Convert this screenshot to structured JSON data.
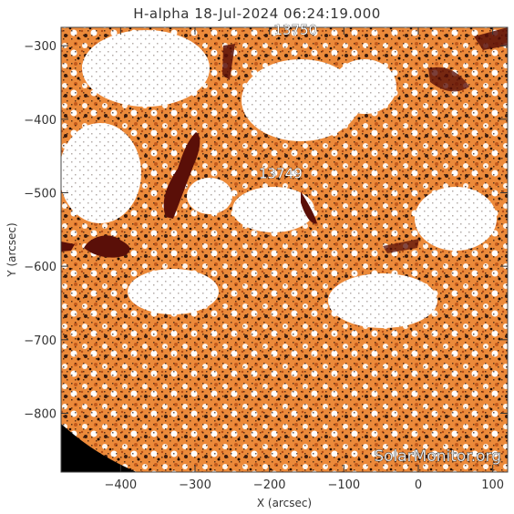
{
  "title": "H-alpha 18-Jul-2024 06:24:19.000",
  "axes": {
    "xlabel": "X (arcsec)",
    "ylabel": "Y (arcsec)",
    "xlim": [
      -480,
      120
    ],
    "ylim": [
      -880,
      -275
    ],
    "x_ticks": [
      -400,
      -300,
      -200,
      -100,
      0,
      100
    ],
    "y_ticks": [
      -300,
      -400,
      -500,
      -600,
      -700,
      -800
    ]
  },
  "regions": [
    {
      "label": "13750",
      "x": -165,
      "y": -285
    },
    {
      "label": "13749",
      "x": -185,
      "y": -480
    }
  ],
  "watermark": "SolarMonitor.org",
  "colors": {
    "chromosphere": "#ec8a3a",
    "plage": "#ffffff",
    "filament": "#5a0f08",
    "space": "#000000"
  }
}
